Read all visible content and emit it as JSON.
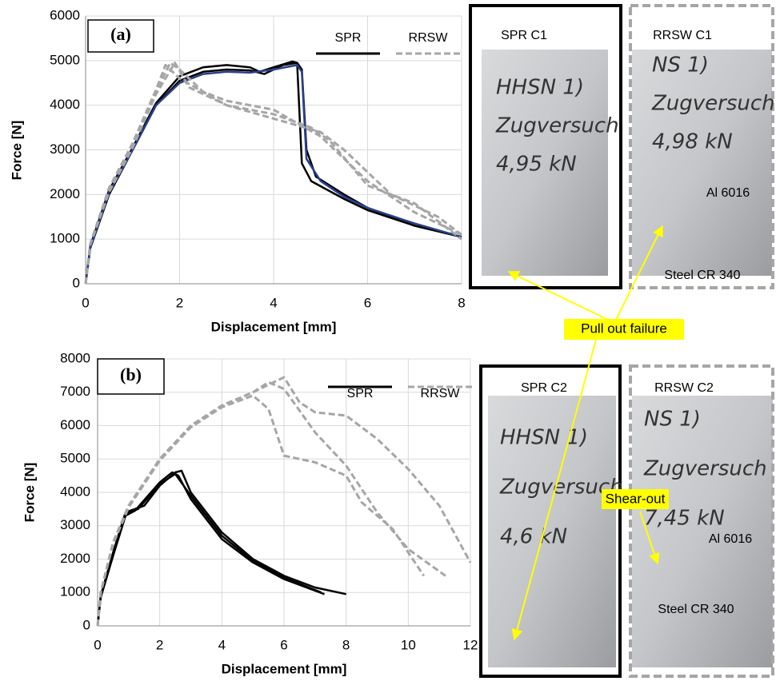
{
  "chart_data": [
    {
      "type": "line",
      "panel_label": "(a)",
      "x_label": "Displacement [mm]",
      "y_label": "Force [N]",
      "xlim": [
        0,
        8
      ],
      "xticks": [
        0,
        2,
        4,
        6,
        8
      ],
      "ylim": [
        0,
        6000
      ],
      "yticks": [
        0,
        1000,
        2000,
        3000,
        4000,
        5000,
        6000
      ],
      "grid": true,
      "series": [
        {
          "name": "SPR",
          "color": "#000000",
          "dash": false,
          "curves": [
            {
              "x": [
                0,
                0.1,
                0.5,
                1,
                1.5,
                2,
                2.5,
                3,
                3.5,
                3.8,
                4.2,
                4.5,
                4.6,
                4.7,
                4.9,
                5.5,
                6,
                7,
                8
              ],
              "values": [
                0,
                800,
                2000,
                3000,
                4000,
                4550,
                4750,
                4800,
                4780,
                4700,
                4900,
                4950,
                4800,
                3000,
                2400,
                2000,
                1700,
                1300,
                1050
              ]
            },
            {
              "x": [
                0,
                0.1,
                0.5,
                1,
                1.5,
                2,
                2.5,
                3,
                3.5,
                3.7,
                4,
                4.4,
                4.5,
                4.6,
                4.8,
                5.5,
                6,
                7,
                8
              ],
              "values": [
                0,
                850,
                2100,
                3050,
                4050,
                4650,
                4850,
                4900,
                4850,
                4750,
                4850,
                4980,
                4950,
                2700,
                2300,
                1900,
                1650,
                1300,
                1050
              ]
            },
            {
              "x": [
                0,
                0.1,
                0.5,
                1,
                1.5,
                2,
                2.5,
                3,
                3.5,
                4,
                4.5,
                4.6,
                4.7,
                5,
                5.5,
                6,
                7,
                8
              ],
              "color": "#2b3f8c",
              "values": [
                0,
                820,
                2050,
                3000,
                4000,
                4500,
                4700,
                4750,
                4730,
                4800,
                4900,
                4750,
                2800,
                2300,
                1950,
                1700,
                1350,
                1050
              ]
            }
          ]
        },
        {
          "name": "RRSW",
          "color": "#a6a6a6",
          "dash": true,
          "curves": [
            {
              "x": [
                0,
                0.1,
                0.5,
                1,
                1.5,
                1.8,
                2,
                2.5,
                3,
                4,
                5,
                5.5,
                6,
                7,
                8
              ],
              "values": [
                0,
                900,
                2100,
                3100,
                4300,
                4950,
                4800,
                4300,
                4100,
                3900,
                3300,
                2800,
                2300,
                1600,
                1100
              ]
            },
            {
              "x": [
                0,
                0.1,
                0.5,
                1,
                1.5,
                1.9,
                2.2,
                3,
                4,
                4.8,
                5.2,
                6,
                7,
                8
              ],
              "values": [
                0,
                880,
                2050,
                3050,
                4250,
                4950,
                4400,
                4000,
                3800,
                3500,
                3200,
                2200,
                1800,
                1000
              ]
            },
            {
              "x": [
                0,
                0.1,
                0.5,
                1,
                1.5,
                1.7,
                2,
                3,
                4,
                5,
                5.5,
                6.5,
                7.5,
                8
              ],
              "values": [
                0,
                900,
                2150,
                3150,
                4350,
                4900,
                4600,
                4000,
                3700,
                3400,
                3000,
                2000,
                1500,
                1100
              ]
            }
          ]
        }
      ]
    },
    {
      "type": "line",
      "panel_label": "(b)",
      "x_label": "Displacement [mm]",
      "y_label": "Force [N]",
      "xlim": [
        0,
        12
      ],
      "xticks": [
        0,
        2,
        4,
        6,
        8,
        10,
        12
      ],
      "ylim": [
        0,
        8000
      ],
      "yticks": [
        0,
        1000,
        2000,
        3000,
        4000,
        5000,
        6000,
        7000,
        8000
      ],
      "grid": true,
      "series": [
        {
          "name": "SPR",
          "color": "#000000",
          "dash": false,
          "curves": [
            {
              "x": [
                0,
                0.1,
                0.5,
                0.9,
                1.5,
                2,
                2.5,
                2.7,
                3,
                4,
                5,
                6,
                7,
                8
              ],
              "values": [
                0,
                900,
                2200,
                3400,
                3600,
                4200,
                4600,
                4650,
                4000,
                2800,
                2000,
                1500,
                1150,
                950
              ]
            },
            {
              "x": [
                0,
                0.1,
                0.5,
                0.9,
                1.2,
                2,
                2.4,
                2.6,
                3,
                4,
                5,
                6,
                7.3
              ],
              "values": [
                0,
                850,
                2100,
                3300,
                3450,
                4300,
                4600,
                4500,
                3800,
                2600,
                1900,
                1400,
                950
              ]
            },
            {
              "x": [
                0,
                0.1,
                0.5,
                0.9,
                1.3,
                2,
                2.5,
                3,
                4,
                5,
                6,
                7.2
              ],
              "values": [
                0,
                880,
                2150,
                3350,
                3500,
                4250,
                4550,
                3900,
                2700,
                1950,
                1450,
                1000
              ]
            }
          ]
        },
        {
          "name": "RRSW",
          "color": "#a6a6a6",
          "dash": true,
          "curves": [
            {
              "x": [
                0,
                0.1,
                0.5,
                1,
                2,
                3,
                4,
                5,
                6,
                6.5,
                7,
                8,
                9,
                10,
                11,
                12
              ],
              "values": [
                0,
                1000,
                2500,
                3600,
                5000,
                6000,
                6600,
                7000,
                7450,
                6700,
                6400,
                6300,
                5600,
                4700,
                3600,
                1900
              ]
            },
            {
              "x": [
                0,
                0.1,
                0.5,
                1,
                2,
                3,
                4,
                5,
                5.5,
                6,
                7,
                8,
                8.5,
                9.5,
                10.5
              ],
              "values": [
                0,
                1000,
                2450,
                3550,
                4950,
                5950,
                6550,
                6900,
                6500,
                5100,
                4900,
                4500,
                3700,
                2900,
                1500
              ]
            },
            {
              "x": [
                0,
                0.1,
                0.5,
                1,
                2,
                3,
                4,
                5,
                5.5,
                6,
                7,
                8,
                9,
                10,
                11.2
              ],
              "values": [
                0,
                1000,
                2500,
                3600,
                5000,
                6000,
                6600,
                7000,
                7300,
                7100,
                5800,
                4800,
                3400,
                2300,
                1500
              ]
            }
          ]
        }
      ]
    }
  ],
  "photos": [
    {
      "label": "SPR C1",
      "writing": [
        "HHSN 1)",
        "Zugversuch",
        "4,95 kN"
      ]
    },
    {
      "label": "RRSW C1",
      "writing": [
        "NS 1)",
        "Zugversuch",
        "4,98 kN"
      ],
      "materials": [
        "Al 6016",
        "Steel CR 340"
      ]
    },
    {
      "label": "SPR C2",
      "writing": [
        "HHSN 1)",
        "Zugversuch",
        "4,6 kN"
      ]
    },
    {
      "label": "RRSW C2",
      "writing": [
        "NS 1)",
        "Zugversuch",
        "7,45 kN"
      ],
      "materials": [
        "Al 6016",
        "Steel CR 340"
      ]
    }
  ],
  "annotations": {
    "pull_out": "Pull out failure",
    "shear_out": "Shear-out"
  }
}
